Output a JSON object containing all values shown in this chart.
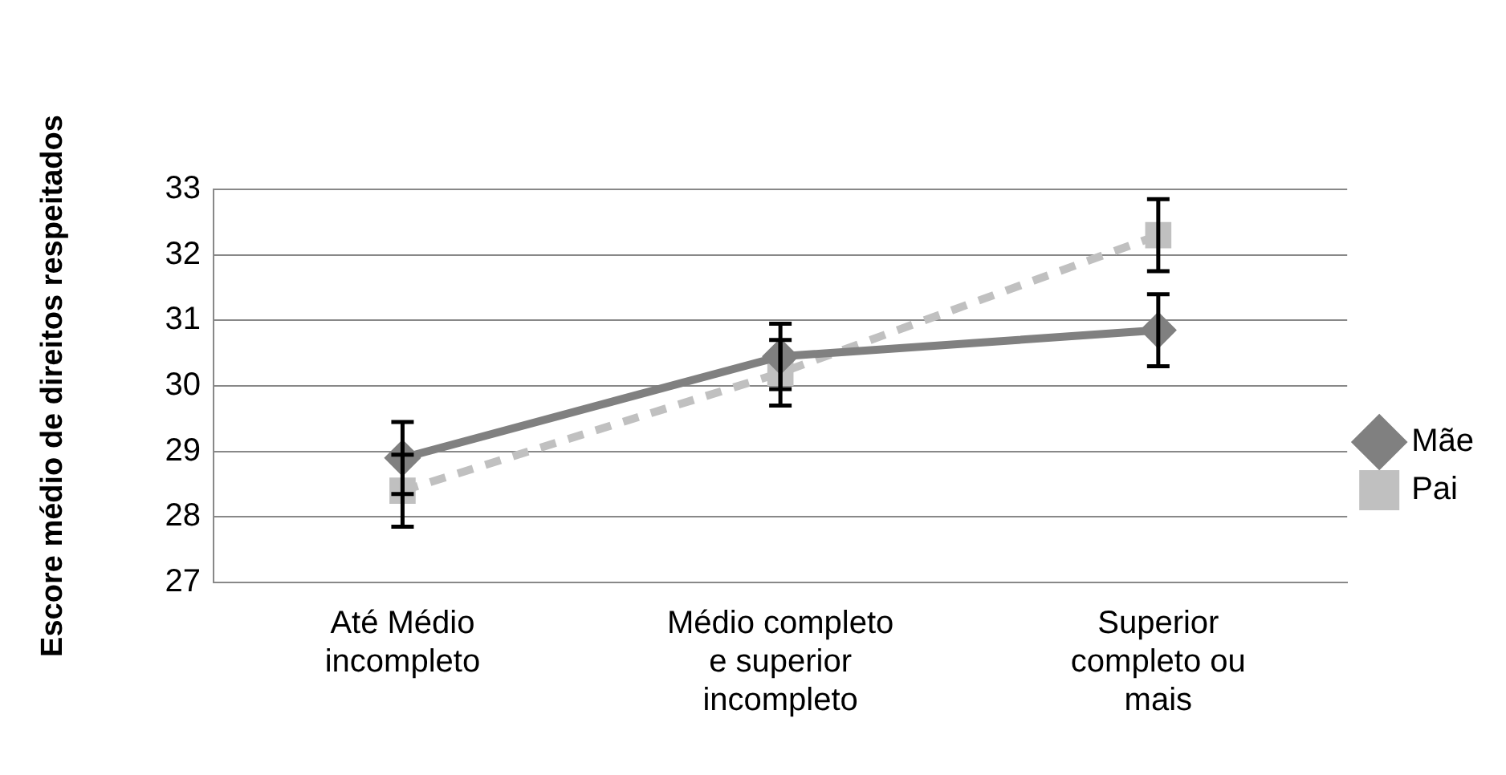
{
  "chart_data": {
    "type": "line",
    "ylabel": "Escore médio de direitos respeitados",
    "categories": [
      "Até Médio\nincompleto",
      "Médio completo\ne superior\nincompleto",
      "Superior\ncompleto ou\nmais"
    ],
    "series": [
      {
        "name": "Mãe",
        "color": "#808080",
        "values": [
          28.9,
          30.45,
          30.85
        ],
        "errors": [
          0.55,
          0.5,
          0.55
        ],
        "marker": "diamond",
        "line_style": "solid"
      },
      {
        "name": "Pai",
        "color": "#c0c0c0",
        "values": [
          28.4,
          30.2,
          32.3
        ],
        "errors": [
          0.55,
          0.5,
          0.55
        ],
        "marker": "square",
        "line_style": "dashed"
      }
    ],
    "ylim": [
      27,
      33
    ],
    "yticks": [
      27,
      28,
      29,
      30,
      31,
      32,
      33
    ],
    "grid": "y",
    "legend": "right"
  }
}
